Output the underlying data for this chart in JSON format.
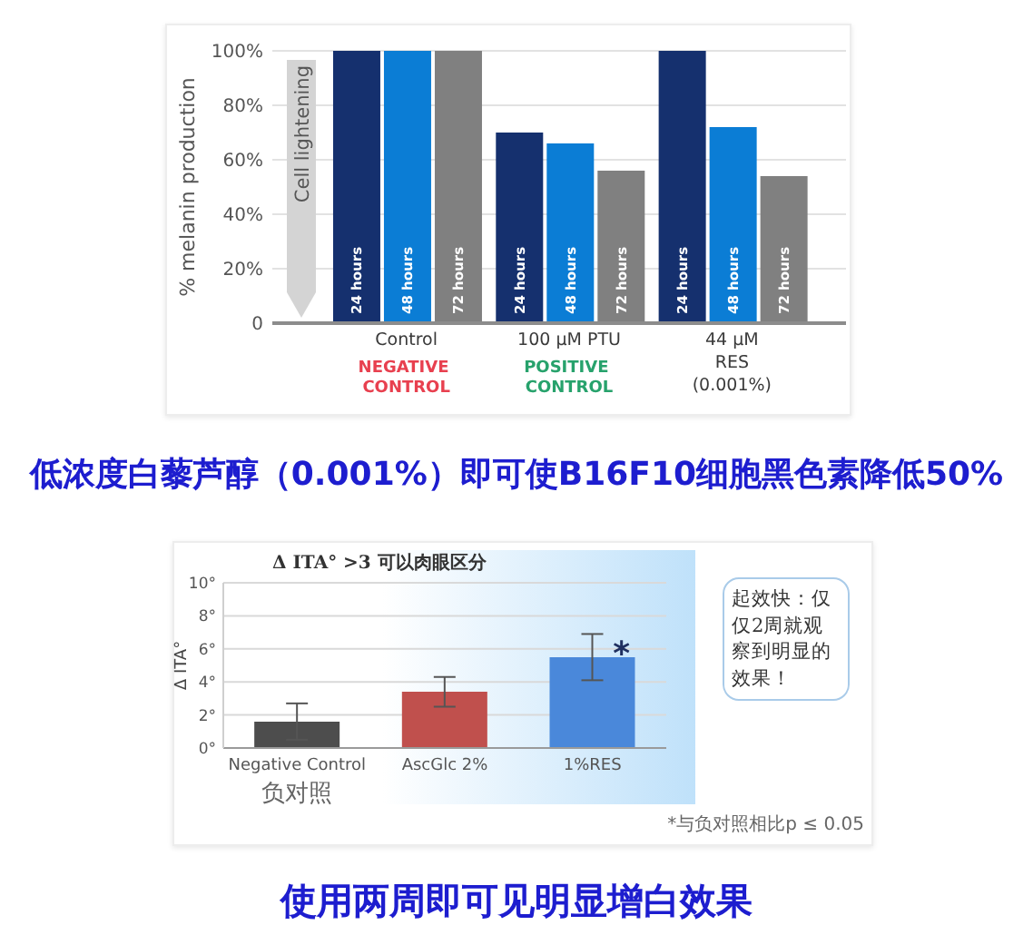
{
  "chart_data": [
    {
      "type": "bar",
      "categories": [
        "Control",
        "100 μM PTU",
        "44 μM\nRES\n(0.001%)"
      ],
      "series": [
        {
          "name": "24 hours",
          "color": "#15306e",
          "values": [
            100,
            70,
            100
          ]
        },
        {
          "name": "48 hours",
          "color": "#0b7dd5",
          "values": [
            100,
            66,
            72
          ]
        },
        {
          "name": "72 hours",
          "color": "#808080",
          "values": [
            100,
            56,
            54
          ]
        }
      ],
      "ylabel": "% melanin production",
      "ylim": [
        0,
        100
      ],
      "yticks": [
        0,
        {
          "value": 20,
          "label": "20%"
        },
        {
          "value": 40,
          "label": "40%"
        },
        {
          "value": 60,
          "label": "60%"
        },
        {
          "value": 80,
          "label": "80%"
        },
        {
          "value": 100,
          "label": "100%"
        }
      ],
      "grid": "y",
      "annotations": [
        "NEGATIVE CONTROL",
        "POSITIVE CONTROL",
        "Cell lightening",
        "低浓度白藜芦醇（0.001%）即可使B16F10细胞黑色素降低50%"
      ]
    },
    {
      "type": "bar",
      "title": "Δ ITA° >3 可以肉眼区分",
      "categories": [
        "Negative Control",
        "AscGlc 2%",
        "1%RES"
      ],
      "values": [
        1.6,
        3.4,
        5.5
      ],
      "colors": [
        "#4d4d4d",
        "#c0504d",
        "#4a88da"
      ],
      "errors": [
        1.1,
        0.9,
        1.4
      ],
      "ylabel": "Δ ITA°",
      "ylim": [
        0,
        10
      ],
      "yticks": [
        {
          "value": 0,
          "label": "0°"
        },
        {
          "value": 2,
          "label": "2°"
        },
        {
          "value": 4,
          "label": "4°"
        },
        {
          "value": 6,
          "label": "6°"
        },
        {
          "value": 8,
          "label": "8°"
        },
        {
          "value": 10,
          "label": "10°"
        }
      ],
      "grid": "y",
      "annotations": [
        "负对照",
        {
          "text": "*",
          "x": "1%RES",
          "y": 5.6
        },
        "*与负对照相比p ≤ 0.05",
        "起效快：仅仅2周就观察到明显的效果！",
        "使用两周即可见明显增白效果"
      ]
    }
  ]
}
